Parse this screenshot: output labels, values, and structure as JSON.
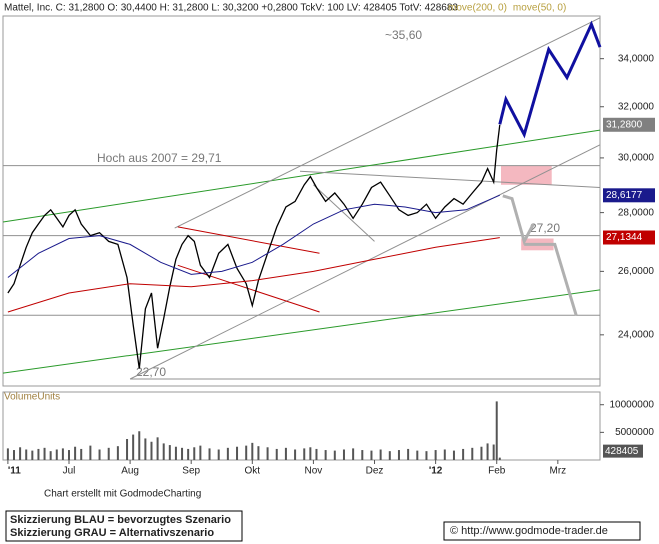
{
  "chart_data": {
    "type": "line",
    "title": "Mattel, Inc. C: 31,2800 O: 30,4400 H: 31,2800 L: 30,3200 +0,2800 TckV: 100 LV: 428405 TotV: 428683",
    "log_scale": true,
    "xlim": [
      -0.08,
      9.69
    ],
    "xticks": [
      {
        "value": 0,
        "label": "'11"
      },
      {
        "value": 1,
        "label": "Jul"
      },
      {
        "value": 2,
        "label": "Aug"
      },
      {
        "value": 3,
        "label": "Sep"
      },
      {
        "value": 4,
        "label": "Okt"
      },
      {
        "value": 5,
        "label": "Nov"
      },
      {
        "value": 6,
        "label": "Dez"
      },
      {
        "value": 7,
        "label": "'12"
      },
      {
        "value": 8,
        "label": "Feb"
      },
      {
        "value": 9,
        "label": "Mrz"
      }
    ],
    "ylim": [
      22.5,
      35.88
    ],
    "yticks": [
      {
        "value": 24,
        "label": "24,0000"
      },
      {
        "value": 26,
        "label": "26,0000"
      },
      {
        "value": 28,
        "label": "28,0000"
      },
      {
        "value": 30,
        "label": "30,0000"
      },
      {
        "value": 32,
        "label": "32,0000"
      },
      {
        "value": 34,
        "label": "34,0000"
      }
    ],
    "x": [
      0.0,
      0.1,
      0.2,
      0.3,
      0.4,
      0.5,
      0.6,
      0.7,
      0.8,
      0.9,
      1.0,
      1.1,
      1.2,
      1.35,
      1.5,
      1.65,
      1.8,
      1.95,
      2.05,
      2.15,
      2.25,
      2.35,
      2.45,
      2.55,
      2.65,
      2.75,
      2.85,
      2.95,
      3.05,
      3.15,
      3.3,
      3.45,
      3.6,
      3.75,
      3.9,
      4.0,
      4.1,
      4.25,
      4.4,
      4.55,
      4.7,
      4.85,
      4.95,
      5.05,
      5.2,
      5.35,
      5.5,
      5.65,
      5.8,
      5.95,
      6.1,
      6.25,
      6.4,
      6.55,
      6.7,
      6.85,
      7.0,
      7.15,
      7.3,
      7.45,
      7.6,
      7.75,
      7.85,
      7.95,
      8.0,
      8.05
    ],
    "series": [
      {
        "color": "#000000",
        "values": [
          25.3,
          25.6,
          26.2,
          26.8,
          27.3,
          27.6,
          27.9,
          28.1,
          27.8,
          27.5,
          27.9,
          28.1,
          27.6,
          27.2,
          27.3,
          27.0,
          26.9,
          25.8,
          24.3,
          23.0,
          24.8,
          25.3,
          23.6,
          24.5,
          25.5,
          26.4,
          26.9,
          27.2,
          27.0,
          26.2,
          25.8,
          26.6,
          26.9,
          26.1,
          25.6,
          24.9,
          25.7,
          26.6,
          27.5,
          28.2,
          28.4,
          29.0,
          29.3,
          28.9,
          28.4,
          28.7,
          28.3,
          27.8,
          28.3,
          28.9,
          29.1,
          28.6,
          28.1,
          27.9,
          28.0,
          28.3,
          27.8,
          28.2,
          28.5,
          28.3,
          28.7,
          29.1,
          29.6,
          29.1,
          30.3,
          31.28
        ]
      },
      {
        "name": "move(200, 0)",
        "color": "#c00000",
        "legend_color": "#b8a040",
        "x": [
          0,
          1,
          2,
          3,
          4,
          5,
          6,
          7,
          8.05
        ],
        "values": [
          24.7,
          25.3,
          25.6,
          25.5,
          25.7,
          26.0,
          26.4,
          26.8,
          27.13
        ]
      },
      {
        "name": "move(50, 0)",
        "color": "#1a1a8c",
        "legend_color": "#b8a040",
        "x": [
          0,
          0.5,
          1,
          1.5,
          2,
          2.5,
          3,
          3.5,
          4,
          4.5,
          5,
          5.5,
          6,
          6.5,
          7,
          7.5,
          8.05
        ],
        "values": [
          25.8,
          26.6,
          27.1,
          27.2,
          26.9,
          26.3,
          25.9,
          26.0,
          26.3,
          26.9,
          27.6,
          28.1,
          28.3,
          28.2,
          28.0,
          28.1,
          28.62
        ]
      }
    ],
    "price_tags": [
      {
        "value": 31.28,
        "label": "31,2800",
        "color": "#808080"
      },
      {
        "value": 28.6177,
        "label": "28,6177",
        "color": "#1a1a8c"
      },
      {
        "value": 27.1344,
        "label": "27,1344",
        "color": "#c00000"
      }
    ],
    "levels": [
      {
        "value": 29.71,
        "label": "Hoch aus 2007 = 29,71"
      },
      {
        "value": 27.2,
        "label": "27,20"
      },
      {
        "value": 24.6
      },
      {
        "value": 22.7,
        "label": "22,70"
      }
    ],
    "annotation": "~35,60",
    "trendlines": [
      {
        "color": "#2a9a2a",
        "x": [
          -0.08,
          9.69
        ],
        "values": [
          27.67,
          31.07
        ]
      },
      {
        "color": "#2a9a2a",
        "x": [
          -0.08,
          9.69
        ],
        "values": [
          22.87,
          25.4
        ]
      },
      {
        "color": "#909090",
        "x": [
          2.73,
          9.69
        ],
        "values": [
          27.46,
          35.8
        ]
      },
      {
        "color": "#909090",
        "x": [
          2.0,
          9.69
        ],
        "values": [
          22.7,
          30.5
        ]
      },
      {
        "color": "#909090",
        "x": [
          4.78,
          9.69
        ],
        "values": [
          29.5,
          28.9
        ]
      },
      {
        "color": "#909090",
        "x": [
          5.0,
          6.0
        ],
        "values": [
          29.0,
          27.0
        ]
      },
      {
        "color": "#c00000",
        "x": [
          2.78,
          5.1
        ],
        "values": [
          27.5,
          26.6
        ]
      },
      {
        "color": "#c00000",
        "x": [
          2.78,
          5.1
        ],
        "values": [
          26.2,
          24.7
        ]
      }
    ],
    "zones": [
      {
        "color": "#f4b8c0",
        "x": [
          8.07,
          8.9
        ],
        "values": [
          29.0,
          29.7
        ]
      },
      {
        "color": "#f4b8c0",
        "x": [
          8.4,
          8.93
        ],
        "values": [
          26.7,
          27.1
        ]
      }
    ],
    "scenarios": [
      {
        "color": "#1010a0",
        "x": [
          8.05,
          8.15,
          8.45,
          8.85,
          9.15,
          9.55,
          9.69
        ],
        "values": [
          31.3,
          32.3,
          30.9,
          34.4,
          33.2,
          35.5,
          34.5
        ]
      },
      {
        "color": "#b0b0b0",
        "x": [
          8.1,
          8.25,
          8.45,
          8.6
        ],
        "values": [
          28.6,
          28.5,
          27.0,
          27.6
        ]
      },
      {
        "color": "#b0b0b0",
        "x": [
          8.45,
          8.95,
          9.3
        ],
        "values": [
          26.9,
          26.9,
          24.6
        ]
      }
    ],
    "volume": {
      "label": "VolumeUnits",
      "color": "#555555",
      "ylim": [
        0,
        12300000
      ],
      "yticks": [
        {
          "value": 5000000,
          "label": "5000000"
        },
        {
          "value": 10000000,
          "label": "10000000"
        }
      ],
      "values": [
        2100000,
        1800000,
        2300000,
        1900000,
        1700000,
        2000000,
        2200000,
        1600000,
        1900000,
        2100000,
        1800000,
        2400000,
        2000000,
        2600000,
        1900000,
        2200000,
        2500000,
        3800000,
        4600000,
        5200000,
        3900000,
        3300000,
        4100000,
        3000000,
        2700000,
        2400000,
        2200000,
        2000000,
        2300000,
        2600000,
        2100000,
        1900000,
        2200000,
        2400000,
        2600000,
        3100000,
        2500000,
        2300000,
        2000000,
        2200000,
        1900000,
        2100000,
        2300000,
        2000000,
        1800000,
        1700000,
        1900000,
        2100000,
        1800000,
        1700000,
        1900000,
        1600000,
        1800000,
        2000000,
        1700000,
        1600000,
        1800000,
        1900000,
        1700000,
        2000000,
        2200000,
        2400000,
        3000000,
        2800000,
        10600000,
        428405
      ],
      "last_label": "428405"
    },
    "footer": "Chart erstellt mit GodmodeCharting",
    "legend_lines": [
      "Skizzierung BLAU = bevorzugtes Szenario",
      "Skizzierung GRAU = Alternativszenario"
    ],
    "copyright": "© http://www.godmode-trader.de"
  }
}
